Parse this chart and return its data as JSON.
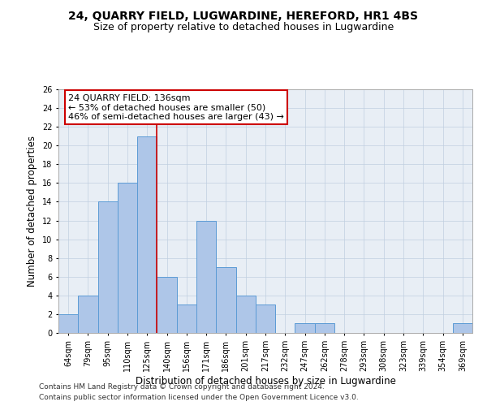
{
  "title": "24, QUARRY FIELD, LUGWARDINE, HEREFORD, HR1 4BS",
  "subtitle": "Size of property relative to detached houses in Lugwardine",
  "xlabel": "Distribution of detached houses by size in Lugwardine",
  "ylabel": "Number of detached properties",
  "categories": [
    "64sqm",
    "79sqm",
    "95sqm",
    "110sqm",
    "125sqm",
    "140sqm",
    "156sqm",
    "171sqm",
    "186sqm",
    "201sqm",
    "217sqm",
    "232sqm",
    "247sqm",
    "262sqm",
    "278sqm",
    "293sqm",
    "308sqm",
    "323sqm",
    "339sqm",
    "354sqm",
    "369sqm"
  ],
  "values": [
    2,
    4,
    14,
    16,
    21,
    6,
    3,
    12,
    7,
    4,
    3,
    0,
    1,
    1,
    0,
    0,
    0,
    0,
    0,
    0,
    1
  ],
  "bar_color": "#aec6e8",
  "bar_edge_color": "#5b9bd5",
  "vline_x_index": 4,
  "vline_color": "#cc0000",
  "annotation_text": "24 QUARRY FIELD: 136sqm\n← 53% of detached houses are smaller (50)\n46% of semi-detached houses are larger (43) →",
  "annotation_box_color": "#ffffff",
  "annotation_box_edge": "#cc0000",
  "ylim": [
    0,
    26
  ],
  "yticks": [
    0,
    2,
    4,
    6,
    8,
    10,
    12,
    14,
    16,
    18,
    20,
    22,
    24,
    26
  ],
  "bg_color": "#e8eef5",
  "plot_bg_color": "#e8eef5",
  "footer1": "Contains HM Land Registry data © Crown copyright and database right 2024.",
  "footer2": "Contains public sector information licensed under the Open Government Licence v3.0.",
  "title_fontsize": 10,
  "subtitle_fontsize": 9,
  "xlabel_fontsize": 8.5,
  "ylabel_fontsize": 8.5,
  "tick_fontsize": 7,
  "annotation_fontsize": 8,
  "footer_fontsize": 6.5
}
